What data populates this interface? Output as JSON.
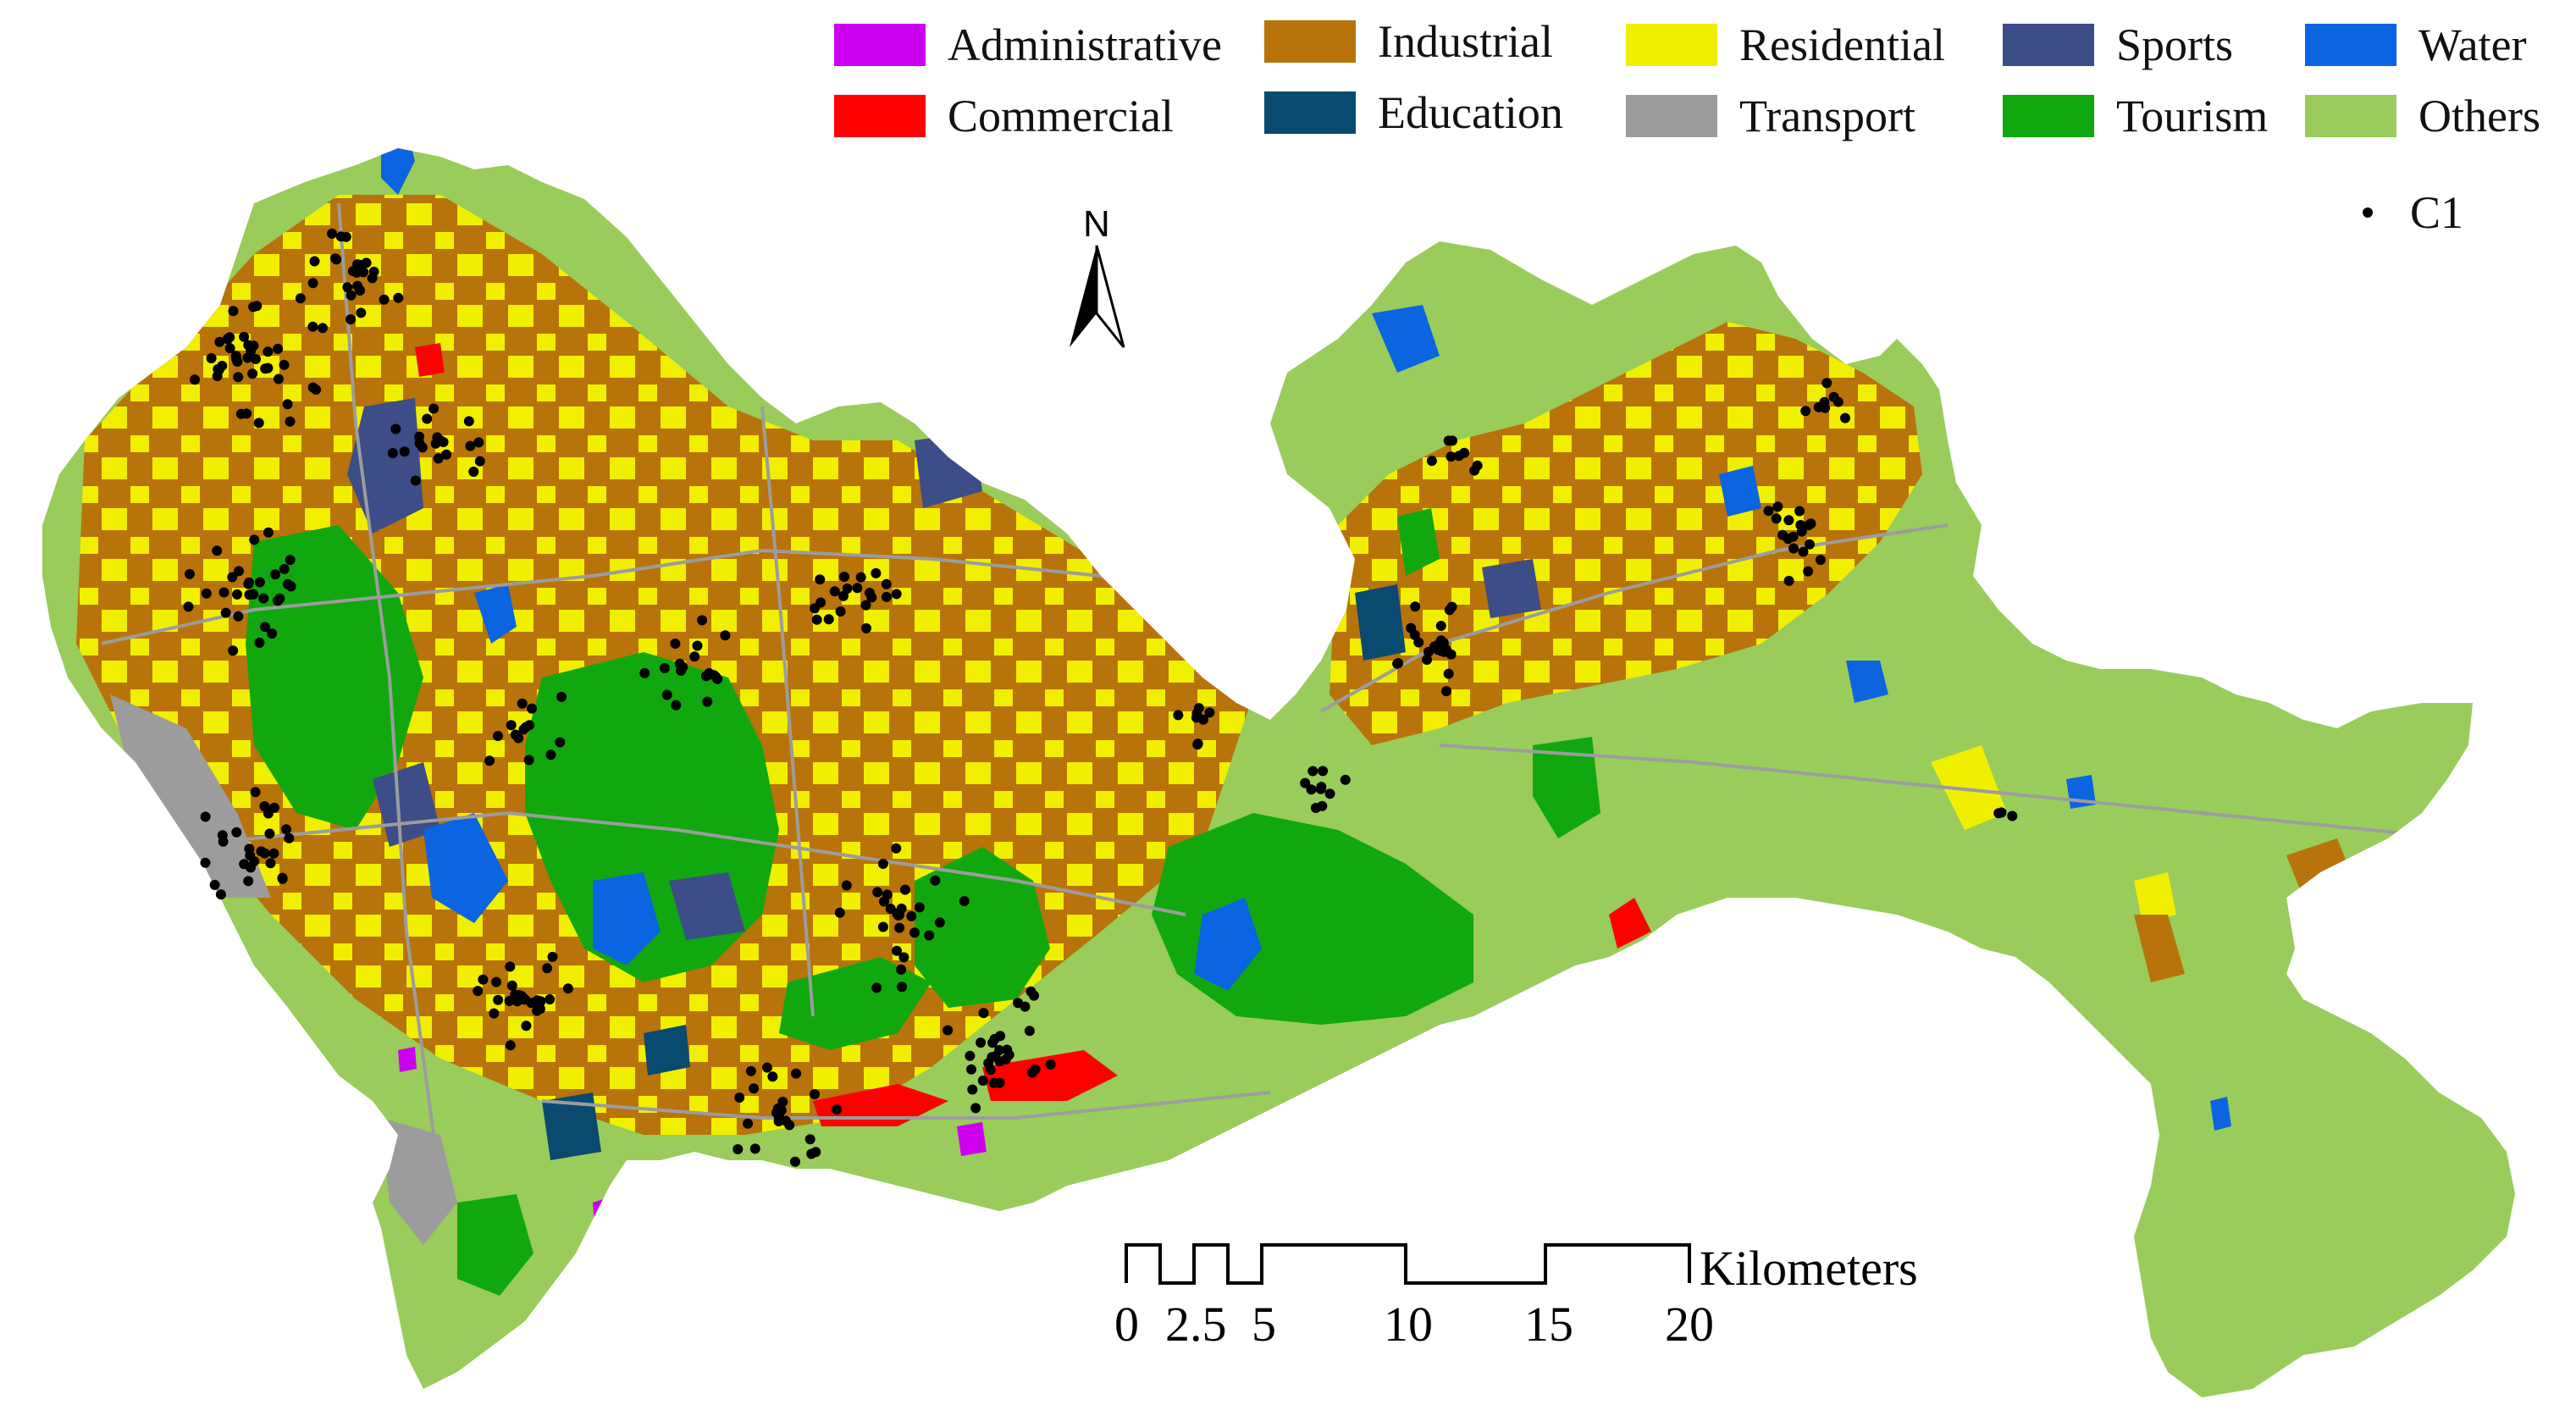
{
  "legend": {
    "items": [
      {
        "label": "Administrative",
        "color": "#cc00ee"
      },
      {
        "label": "Commercial",
        "color": "#ff0000"
      },
      {
        "label": "Industrial",
        "color": "#b8730a"
      },
      {
        "label": "Education",
        "color": "#0a4a70"
      },
      {
        "label": "Residential",
        "color": "#f0ef00"
      },
      {
        "label": "Transport",
        "color": "#9c9c9c"
      },
      {
        "label": "Sports",
        "color": "#3c4d88"
      },
      {
        "label": "Tourism",
        "color": "#10a80e"
      },
      {
        "label": "Water",
        "color": "#0b64e0"
      },
      {
        "label": "Others",
        "color": "#99cc5a"
      }
    ],
    "point_layer": {
      "label": "C1",
      "color": "#000000"
    }
  },
  "north_arrow": {
    "label": "N"
  },
  "scale_bar": {
    "unit": "Kilometers",
    "ticks": [
      "0",
      "2.5",
      "5",
      "10",
      "15",
      "20"
    ]
  }
}
